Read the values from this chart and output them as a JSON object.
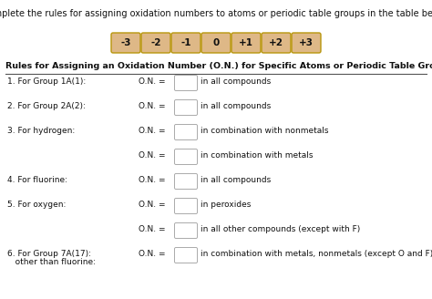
{
  "title": "Complete the rules for assigning oxidation numbers to atoms or periodic table groups in the table below.",
  "button_labels": [
    "-3",
    "-2",
    "-1",
    "0",
    "+1",
    "+2",
    "+3"
  ],
  "button_color": "#DEB887",
  "button_border": "#B8960C",
  "section_title": "Rules for Assigning an Oxidation Number (O.N.) for Specific Atoms or Periodic Table Groups",
  "rows": [
    {
      "label": "1. For Group 1A(1):",
      "on_text": "O.N. =",
      "desc": "in all compounds",
      "multiline": false
    },
    {
      "label": "2. For Group 2A(2):",
      "on_text": "O.N. =",
      "desc": "in all compounds",
      "multiline": false
    },
    {
      "label": "3. For hydrogen:",
      "on_text": "O.N. =",
      "desc": "in combination with nonmetals",
      "multiline": false
    },
    {
      "label": "",
      "on_text": "O.N. =",
      "desc": "in combination with metals",
      "multiline": false
    },
    {
      "label": "4. For fluorine:",
      "on_text": "O.N. =",
      "desc": "in all compounds",
      "multiline": false
    },
    {
      "label": "5. For oxygen:",
      "on_text": "O.N. =",
      "desc": "in peroxides",
      "multiline": false
    },
    {
      "label": "",
      "on_text": "O.N. =",
      "desc": "in all other compounds (except with F)",
      "multiline": false
    },
    {
      "label": "6. For Group 7A(17):",
      "label2": "   other than fluorine:",
      "on_text": "O.N. =",
      "desc": "in combination with metals, nonmetals (except O and F)",
      "multiline": true
    }
  ],
  "bg_color": "#FFFFFF",
  "text_color": "#111111",
  "box_fill": "#FFFFFF",
  "box_border": "#AAAAAA",
  "title_fontsize": 7.0,
  "btn_fontsize": 7.5,
  "section_fontsize": 6.8,
  "row_fontsize": 6.5
}
